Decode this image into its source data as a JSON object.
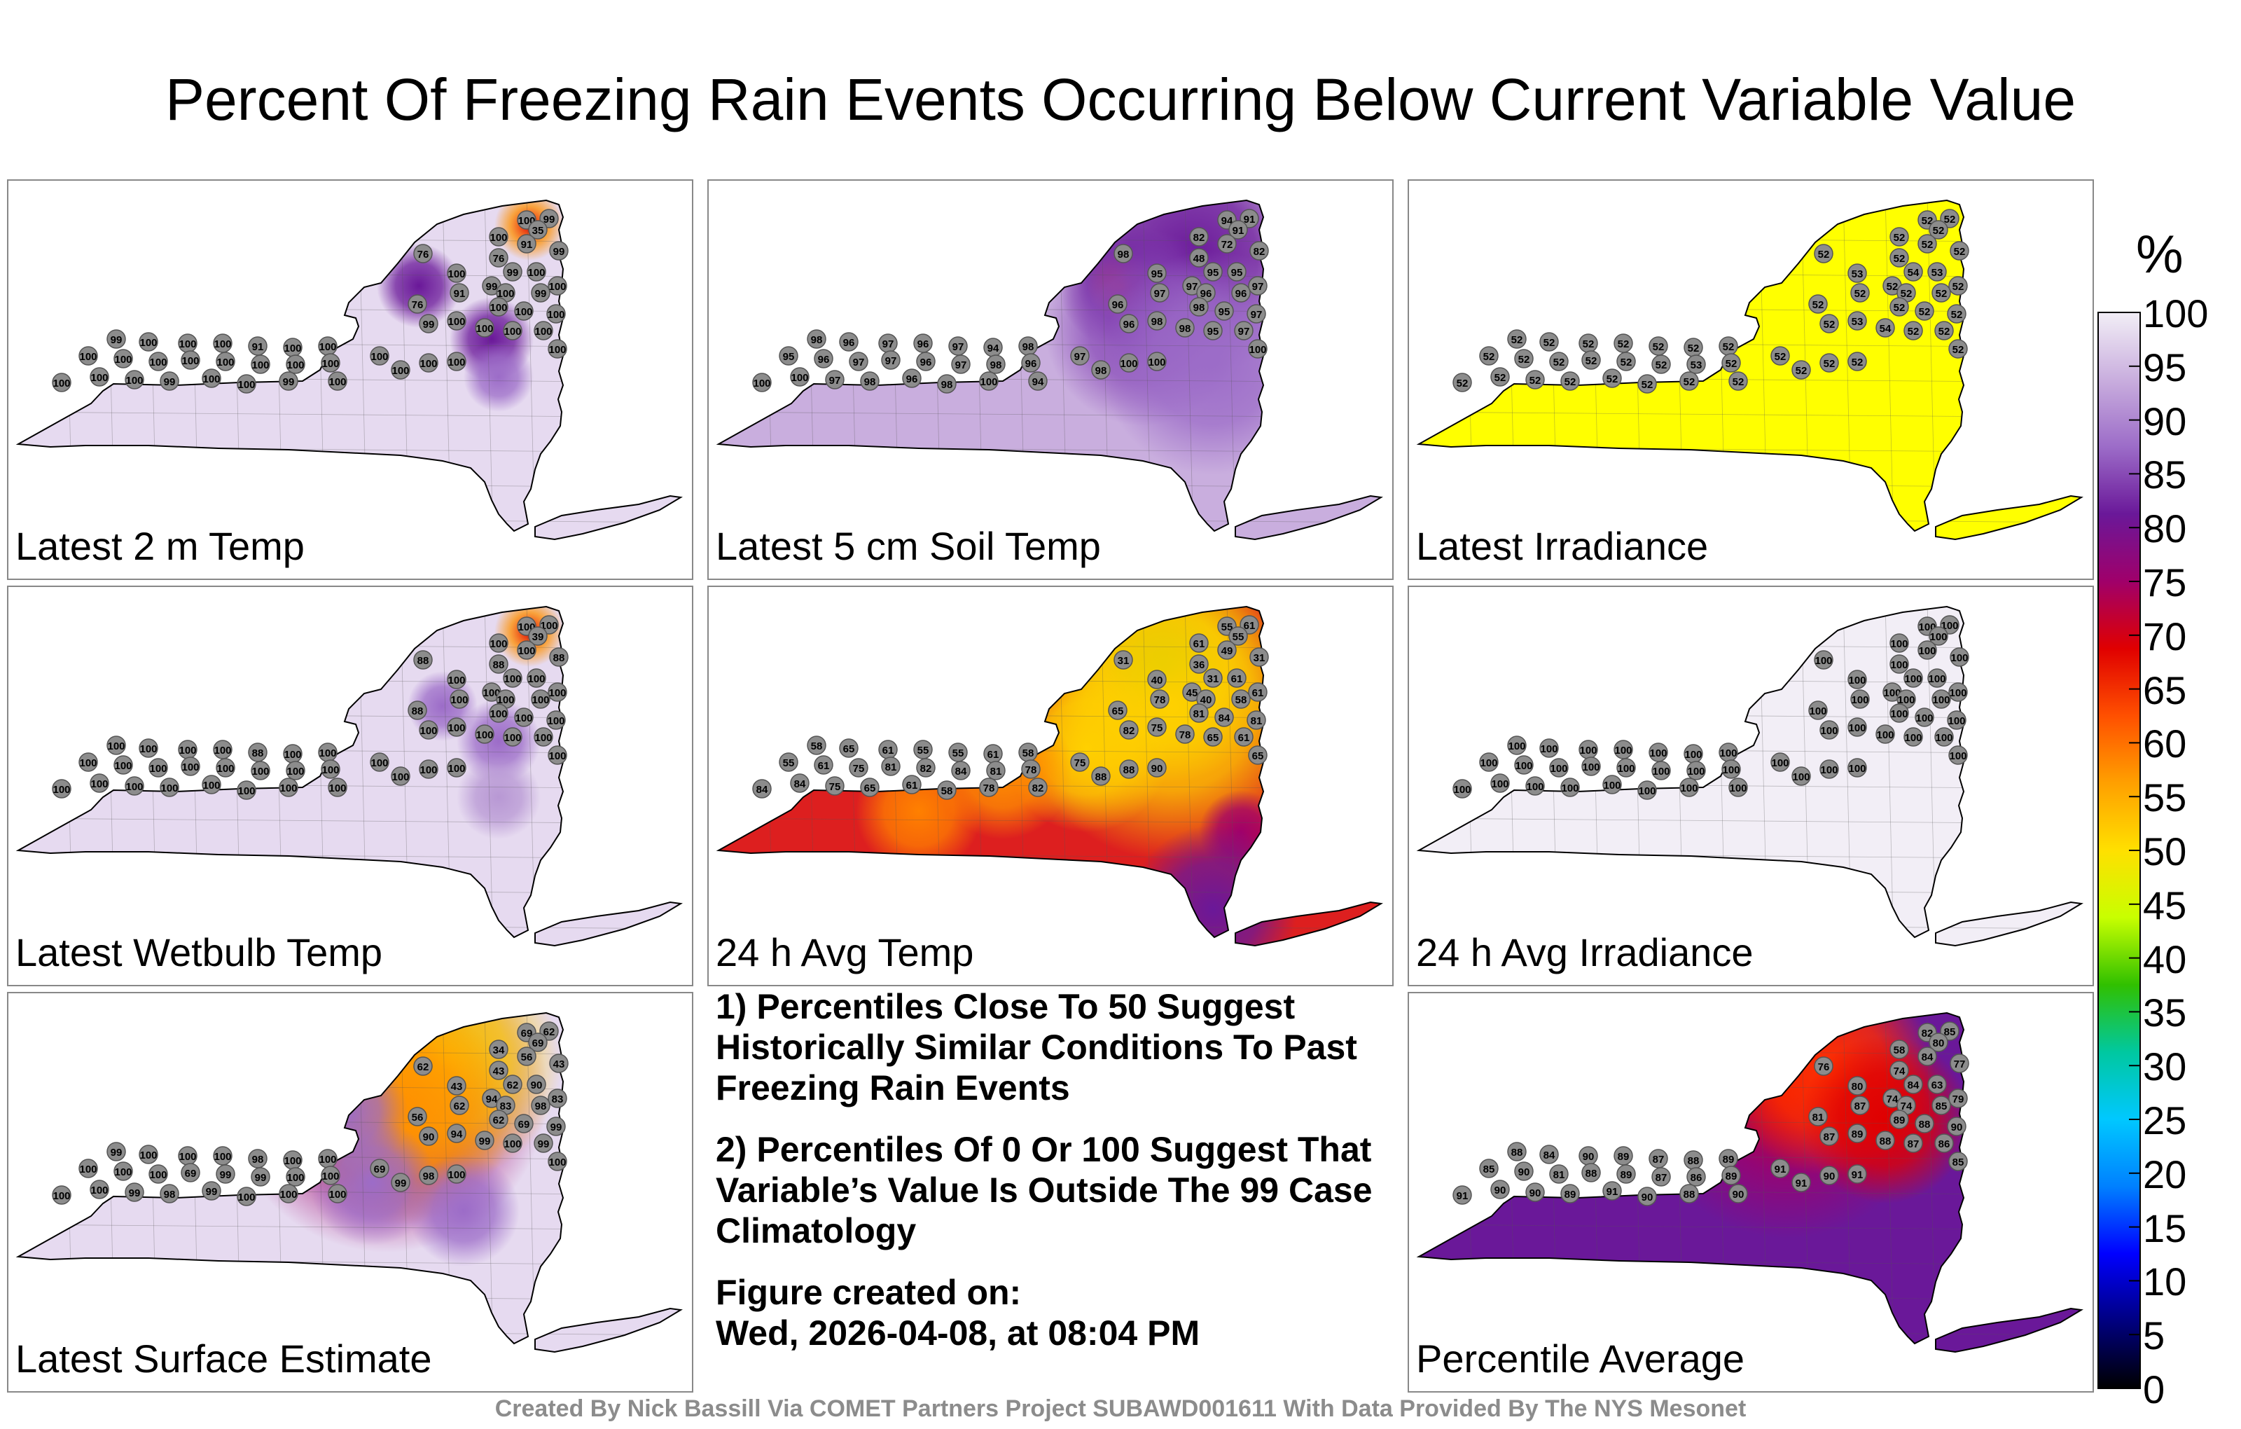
{
  "title": "Percent Of Freezing Rain Events Occurring Below Current Variable Value",
  "panels": [
    {
      "label": "Latest 2 m Temp",
      "fill": "#e6daf0",
      "values": [
        100,
        99,
        35,
        100,
        91,
        99,
        76,
        76,
        100,
        99,
        100,
        99,
        100,
        99,
        100,
        76,
        91,
        100,
        100,
        100,
        99,
        100,
        100,
        100,
        100,
        100,
        99,
        100,
        100,
        100,
        91,
        100,
        100,
        100,
        100,
        100,
        100,
        100,
        100,
        100,
        100,
        100,
        100,
        100,
        99,
        100,
        100,
        99,
        100,
        100,
        100,
        100,
        100
      ]
    },
    {
      "label": "Latest 5 cm Soil Temp",
      "fill": "#c9aede",
      "values": [
        94,
        91,
        91,
        82,
        72,
        82,
        98,
        48,
        95,
        95,
        95,
        97,
        96,
        96,
        97,
        96,
        97,
        98,
        95,
        97,
        96,
        98,
        98,
        95,
        97,
        100,
        98,
        96,
        97,
        96,
        97,
        94,
        98,
        95,
        96,
        97,
        97,
        96,
        97,
        98,
        96,
        100,
        100,
        97,
        98,
        96,
        98,
        100,
        94,
        97,
        98,
        100,
        100
      ]
    },
    {
      "label": "Latest Irradiance",
      "fill": "#ffff00",
      "values": [
        52,
        52,
        52,
        52,
        52,
        52,
        52,
        52,
        53,
        54,
        53,
        52,
        52,
        52,
        52,
        52,
        52,
        52,
        52,
        52,
        52,
        53,
        54,
        52,
        52,
        52,
        52,
        52,
        52,
        52,
        52,
        52,
        52,
        52,
        52,
        52,
        52,
        52,
        52,
        53,
        52,
        52,
        52,
        52,
        52,
        52,
        52,
        52,
        52,
        52,
        52,
        52,
        52
      ]
    },
    {
      "label": "Latest Wetbulb Temp",
      "fill": "#e6daf0",
      "values": [
        100,
        100,
        39,
        100,
        100,
        88,
        88,
        88,
        100,
        100,
        100,
        100,
        100,
        100,
        100,
        88,
        100,
        100,
        100,
        100,
        100,
        100,
        100,
        100,
        100,
        100,
        100,
        100,
        100,
        100,
        88,
        100,
        100,
        100,
        100,
        100,
        100,
        100,
        100,
        100,
        100,
        100,
        100,
        100,
        100,
        100,
        100,
        100,
        100,
        100,
        100,
        100,
        100
      ]
    },
    {
      "label": "24 h Avg Temp",
      "fill": "#dd1f1f",
      "values": [
        55,
        61,
        55,
        61,
        49,
        31,
        31,
        36,
        40,
        31,
        61,
        45,
        40,
        58,
        61,
        65,
        78,
        81,
        84,
        81,
        82,
        75,
        78,
        65,
        61,
        65,
        58,
        65,
        61,
        55,
        55,
        61,
        58,
        55,
        61,
        75,
        81,
        82,
        84,
        81,
        78,
        84,
        84,
        75,
        65,
        61,
        58,
        78,
        82,
        75,
        88,
        88,
        90
      ]
    },
    {
      "label": "24 h Avg Irradiance",
      "fill": "#f2eef6",
      "values": [
        100,
        100,
        100,
        100,
        100,
        100,
        100,
        100,
        100,
        100,
        100,
        100,
        100,
        100,
        100,
        100,
        100,
        100,
        100,
        100,
        100,
        100,
        100,
        100,
        100,
        100,
        100,
        100,
        100,
        100,
        100,
        100,
        100,
        100,
        100,
        100,
        100,
        100,
        100,
        100,
        100,
        100,
        100,
        100,
        100,
        100,
        100,
        100,
        100,
        100,
        100,
        100,
        100
      ]
    },
    {
      "label": "Latest Surface Estimate",
      "fill": "#e6daf0",
      "values": [
        69,
        62,
        69,
        34,
        56,
        43,
        62,
        43,
        43,
        62,
        90,
        94,
        83,
        98,
        83,
        56,
        62,
        62,
        69,
        99,
        90,
        94,
        99,
        100,
        99,
        100,
        99,
        100,
        100,
        100,
        98,
        100,
        100,
        100,
        100,
        100,
        69,
        99,
        99,
        100,
        100,
        100,
        100,
        99,
        98,
        99,
        100,
        100,
        100,
        69,
        99,
        98,
        100
      ]
    },
    {
      "label": "Percentile Average",
      "fill": "#6a1899",
      "values": [
        82,
        85,
        80,
        58,
        84,
        77,
        76,
        74,
        80,
        84,
        63,
        74,
        74,
        85,
        79,
        81,
        87,
        89,
        88,
        90,
        87,
        89,
        88,
        87,
        86,
        85,
        88,
        84,
        90,
        89,
        87,
        88,
        89,
        85,
        90,
        81,
        88,
        89,
        87,
        86,
        89,
        91,
        90,
        90,
        89,
        91,
        90,
        88,
        90,
        91,
        91,
        90,
        91
      ]
    }
  ],
  "notes": {
    "note1": "1) Percentiles Close To 50 Suggest Historically Similar Conditions To Past Freezing Rain Events",
    "note2": "2) Percentiles Of 0 Or 100 Suggest That Variable’s Value Is Outside The 99 Case Climatology",
    "created_label": "Figure created on:",
    "created_date": "Wed, 2026-04-08, at 08:04 PM"
  },
  "colorbar": {
    "unit": "%",
    "ticks": [
      "100",
      "95",
      "90",
      "85",
      "80",
      "75",
      "70",
      "65",
      "60",
      "55",
      "50",
      "45",
      "40",
      "35",
      "30",
      "25",
      "20",
      "15",
      "10",
      "5",
      "0"
    ],
    "stops": [
      "#f2eef6",
      "#c9aede",
      "#9c6cc8",
      "#6a1899",
      "#a0006a",
      "#e00000",
      "#ff5000",
      "#ffa000",
      "#ffe000",
      "#c8ff00",
      "#30c000",
      "#00c8a0",
      "#00c8ff",
      "#0080ff",
      "#0000ff",
      "#000080",
      "#000000"
    ]
  },
  "credit": "Created By Nick Bassill Via COMET Partners Project SUBAWD001611 With Data Provided By The NYS Mesonet"
}
